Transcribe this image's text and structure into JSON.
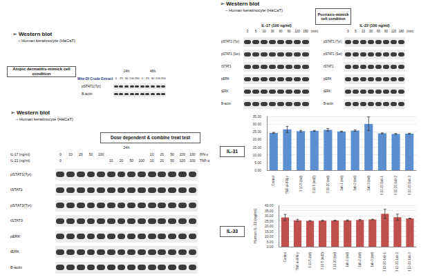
{
  "blots": [
    {
      "heading": "➢ Western blot",
      "subheading": "– Human keratinocyte (HaCaT)",
      "condition": "Atopic dermatitis-mimick cell condition",
      "treatment": "Mite-Df Crude Extract",
      "groups": [
        {
          "label": "24h",
          "lanes": [
            "0",
            "25",
            "50",
            "100",
            "200"
          ]
        },
        {
          "label": "48h",
          "lanes": [
            "0",
            "25",
            "50",
            "100",
            "200"
          ]
        }
      ],
      "rows": [
        "pSTAT1(Tyr)",
        "B-actin"
      ]
    },
    {
      "heading": "➢ Western blot",
      "subheading": "– Human keratinocyte (HaCaT)",
      "condition": "Psoriasis-mimick cell condition",
      "panels": [
        {
          "title": "IL-17 (100 ng/ml)",
          "lanes": [
            "0",
            "5",
            "10",
            "30",
            "60",
            "90",
            "120",
            "180"
          ],
          "unit": "(min)",
          "rows": [
            "pSTAT1 (Tyr)",
            "pSTAT1 (Ser)",
            "tSTAT1",
            "pERK",
            "tERK",
            "B-actin"
          ]
        },
        {
          "title": "IL-22 (100 ng/ml)",
          "lanes": [
            "0",
            "5",
            "10",
            "30",
            "60",
            "90",
            "120",
            "180"
          ],
          "unit": "(min)",
          "rows": [
            "pSTAT1 (Tyr)",
            "pSTAT1 (Ser)",
            "tSTAT1",
            "pERK",
            "tERK",
            "B-actin"
          ]
        }
      ]
    },
    {
      "heading": "➢ Western blot",
      "subheading": "– Human keratinocyte (HaCaT)",
      "condition": "Dose dependent & combine treat test",
      "time": "24h",
      "treatments": [
        {
          "label": "IL-17 (ng/ml)",
          "lanes": [
            "0",
            "10",
            "20",
            "50",
            "100",
            null,
            null,
            null,
            null,
            "10",
            "20",
            "50",
            "100",
            "100"
          ],
          "extra": "IFN-γ"
        },
        {
          "label": "IL-22 (ng/ml)",
          "lanes": [
            "0",
            null,
            null,
            null,
            null,
            "10",
            "20",
            "50",
            "100",
            "10",
            "20",
            "50",
            "100",
            "100"
          ],
          "extra": "TNF-α"
        }
      ],
      "rows": [
        "pSTAT1(Tyr)",
        "tSTAT1",
        "pSTAT3(Tyr)",
        "tSTAT3",
        "pERK",
        "tERK",
        "B-actin"
      ]
    }
  ],
  "chart_data": [
    {
      "type": "bar",
      "title": "IL-31",
      "categories": [
        "Control",
        "TNF-α+IFN-γ",
        "3 10-5 (ind)",
        "3 10-5 (ind2)",
        "3 10-20 (ind)",
        "1ab-1 (ind)",
        "1ab-2 (ind)",
        "1ab-3 (ind)",
        "3 10-20-1ab-1",
        "3 10-20-1ab-2",
        "3 10-20-1ab-3"
      ],
      "values": [
        24.3,
        26.6,
        25.4,
        25.6,
        26.3,
        25.2,
        25.8,
        30.2,
        24.0,
        23.6,
        23.8
      ],
      "errors": [
        0.3,
        2.0,
        0.5,
        0.3,
        0.8,
        0.3,
        0.5,
        4.5,
        0.3,
        0.3,
        0.3
      ],
      "color": "#5b8fd0",
      "ylim": [
        0,
        35
      ],
      "yticks": [
        {
          "value": 0,
          "label": "0.00"
        },
        {
          "value": 5,
          "label": "5.00"
        },
        {
          "value": 10,
          "label": "10.00"
        },
        {
          "value": 15,
          "label": "15.00"
        },
        {
          "value": 20,
          "label": "20.00"
        },
        {
          "value": 25,
          "label": "25.00"
        },
        {
          "value": 30,
          "label": "30.00"
        },
        {
          "value": 35,
          "label": "35.00"
        }
      ],
      "grid": true
    },
    {
      "type": "bar",
      "title": "IL-33",
      "y_label": "Human IL-33 (ng/ml)",
      "categories": [
        "Control",
        "TNF-α+IFN-γ",
        "3 10-5 (ind)",
        "3 10-5 (ind2)",
        "3 10-20 (ind)",
        "1ab-1 (ind)",
        "1ab-2 (ind)",
        "1ab-3 (ind)",
        "3 10-20-1ab-1",
        "3 10-20-1ab-2",
        "3 10-20-1ab-3"
      ],
      "values": [
        28.3,
        25.5,
        25.0,
        25.2,
        25.3,
        25.4,
        25.8,
        26.3,
        31.8,
        28.5,
        27.3
      ],
      "errors": [
        3.0,
        1.0,
        0.3,
        0.3,
        0.3,
        0.5,
        0.5,
        0.3,
        4.5,
        3.0,
        0.3
      ],
      "color": "#c0504d",
      "ylim": [
        0,
        40
      ],
      "yticks": [
        {
          "value": 0,
          "label": "0.00"
        },
        {
          "value": 5,
          "label": "5.00"
        },
        {
          "value": 10,
          "label": "10.00"
        },
        {
          "value": 15,
          "label": "15.00"
        },
        {
          "value": 20,
          "label": "20.00"
        },
        {
          "value": 25,
          "label": "25.00"
        },
        {
          "value": 30,
          "label": "30.00"
        },
        {
          "value": 35,
          "label": "35.00"
        },
        {
          "value": 40,
          "label": "40.00"
        }
      ],
      "grid": true
    }
  ]
}
